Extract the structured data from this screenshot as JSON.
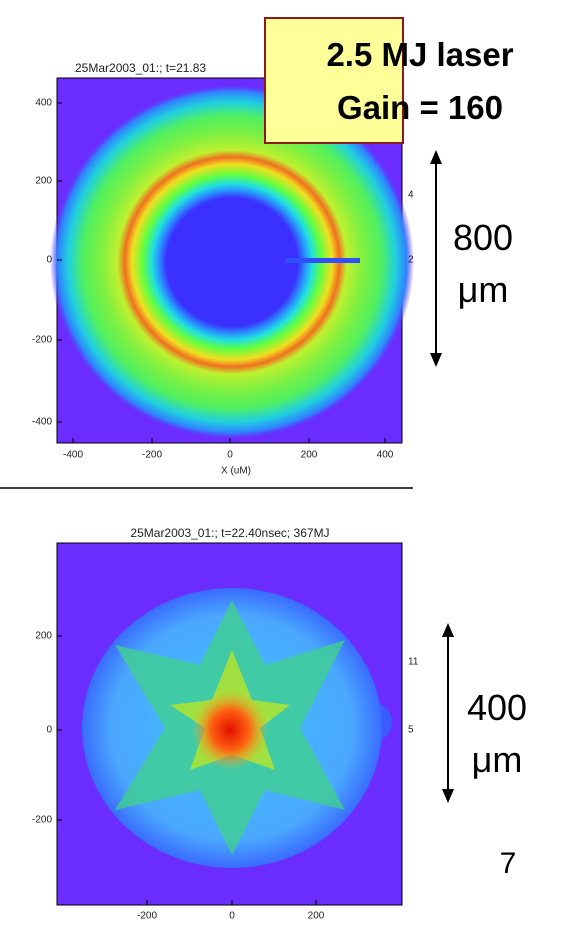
{
  "panels": [
    {
      "title": "25Mar2003_01:; t=21.83",
      "yticks": [
        "400",
        "200",
        "0",
        "-200",
        "-400"
      ],
      "xticks": [
        "-400",
        "-200",
        "0",
        "200",
        "400"
      ],
      "xlabel": "X (uM)",
      "right_ticks": [
        "4",
        "2"
      ]
    },
    {
      "title": "25Mar2003_01:; t=22.40nsec; 367MJ",
      "yticks": [
        "200",
        "0",
        "-200"
      ],
      "xticks": [
        "-200",
        "0",
        "200"
      ],
      "right_ticks": [
        "11",
        "5"
      ]
    }
  ],
  "callout": {
    "lines": [
      "2.5 MJ laser",
      "Gain = 160"
    ]
  },
  "scale_bars": [
    {
      "value": "800",
      "unit": "μm"
    },
    {
      "value": "400",
      "unit": "μm"
    }
  ],
  "page_number": "7"
}
